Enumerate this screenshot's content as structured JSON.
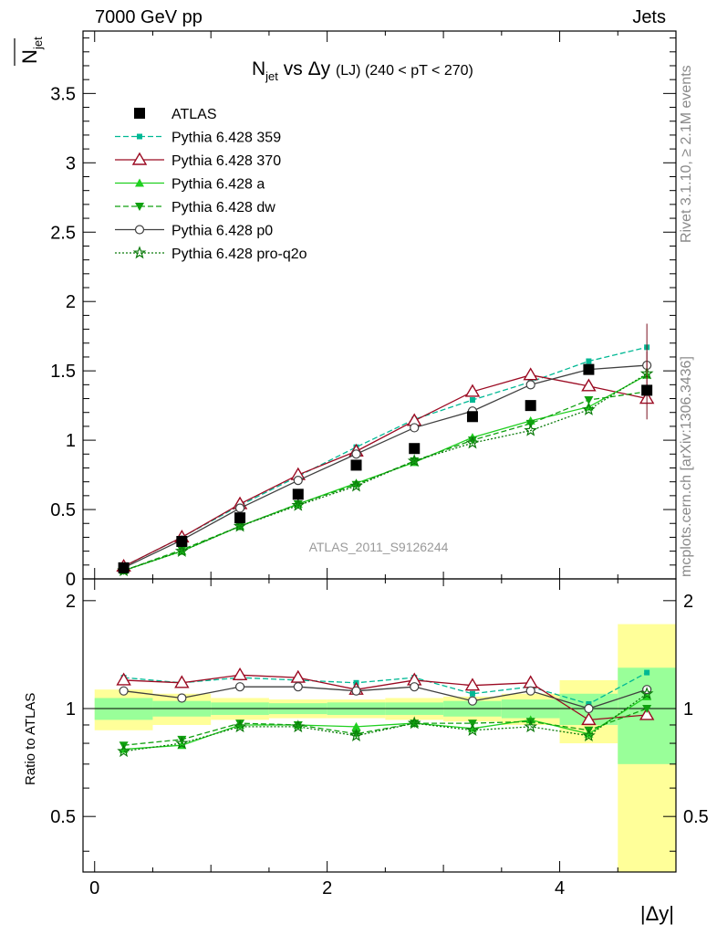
{
  "header": {
    "left": "7000 GeV pp",
    "right": "Jets",
    "side_top": "Rivet 3.1.10, ≥ 2.1M events",
    "side_bottom": "mcplots.cern.ch [arXiv:1306.3436]"
  },
  "colors": {
    "ATLAS": "#000000",
    "359": "#00b894",
    "370": "#9b0a22",
    "a": "#20d020",
    "dw": "#10a010",
    "p0": "#404040",
    "pro-q2o": "#0a7a0a",
    "band_yellow": "#ffff99",
    "band_green": "#99ff99"
  },
  "chart_data": {
    "type": "line",
    "title_main": "N",
    "title_sub": "jet",
    "title_mid": " vs Δy ",
    "title_lj": "(LJ)",
    "title_tail": " (240 < pT < 270)",
    "ylabel_main": "N",
    "ylabel_sub": "jet",
    "xlabel": "|Δy|",
    "ratio_ylabel": "Ratio to ATLAS",
    "watermark": "ATLAS_2011_S9126244",
    "xlim": [
      -0.1,
      5.0
    ],
    "ylim": [
      0,
      3.95
    ],
    "ratio_ylim": [
      0.35,
      2.3
    ],
    "xticks": [
      0,
      2,
      4
    ],
    "yticks": [
      0,
      0.5,
      1,
      1.5,
      2,
      2.5,
      3,
      3.5
    ],
    "ytick_labels": [
      "0",
      "0.5",
      "1",
      "1.5",
      "2",
      "2.5",
      "3",
      "3.5"
    ],
    "ratio_ticks": [
      0.5,
      1,
      2
    ],
    "ratio_tick_labels": [
      "0.5",
      "1",
      "2"
    ],
    "x": [
      0.25,
      0.75,
      1.25,
      1.75,
      2.25,
      2.75,
      3.25,
      3.75,
      4.25,
      4.75
    ],
    "bin_edges": [
      0,
      0.5,
      1.0,
      1.5,
      2.0,
      2.5,
      3.0,
      3.5,
      4.0,
      4.5,
      5.0
    ],
    "data": {
      "name": "ATLAS",
      "values": [
        0.08,
        0.27,
        0.44,
        0.61,
        0.82,
        0.94,
        1.17,
        1.25,
        1.51,
        1.36
      ]
    },
    "band_yellow_half": [
      0.13,
      0.1,
      0.07,
      0.06,
      0.06,
      0.07,
      0.08,
      0.1,
      0.2,
      0.72
    ],
    "band_green_half": [
      0.07,
      0.05,
      0.04,
      0.035,
      0.04,
      0.04,
      0.05,
      0.06,
      0.1,
      0.3
    ],
    "series": [
      {
        "name": "Pythia 6.428 359",
        "key": "359",
        "marker": "square-small",
        "dash": "6,3",
        "values": [
          0.09,
          0.3,
          0.53,
          0.74,
          0.95,
          1.15,
          1.29,
          1.42,
          1.57,
          1.67
        ],
        "ratio": [
          1.22,
          1.18,
          1.22,
          1.2,
          1.18,
          1.22,
          1.1,
          1.15,
          1.03,
          1.26
        ]
      },
      {
        "name": "Pythia 6.428 370",
        "key": "370",
        "marker": "triangle-open",
        "dash": "",
        "values": [
          0.09,
          0.3,
          0.54,
          0.75,
          0.92,
          1.14,
          1.35,
          1.47,
          1.39,
          1.3
        ],
        "ratio": [
          1.2,
          1.18,
          1.24,
          1.22,
          1.13,
          1.2,
          1.16,
          1.18,
          0.93,
          0.96
        ]
      },
      {
        "name": "Pythia 6.428 a",
        "key": "a",
        "marker": "triangle-filled",
        "dash": "",
        "values": [
          0.06,
          0.2,
          0.38,
          0.54,
          0.69,
          0.84,
          1.02,
          1.14,
          1.24,
          1.47
        ],
        "ratio": [
          0.77,
          0.79,
          0.9,
          0.9,
          0.89,
          0.91,
          0.88,
          0.93,
          0.85,
          1.08
        ]
      },
      {
        "name": "Pythia 6.428 dw",
        "key": "dw",
        "marker": "triangle-down",
        "dash": "6,3",
        "values": [
          0.06,
          0.21,
          0.38,
          0.54,
          0.68,
          0.85,
          1.0,
          1.12,
          1.29,
          1.35
        ],
        "ratio": [
          0.79,
          0.82,
          0.91,
          0.9,
          0.85,
          0.91,
          0.91,
          0.92,
          0.87,
          1.0
        ]
      },
      {
        "name": "Pythia 6.428 p0",
        "key": "p0",
        "marker": "circle-open",
        "dash": "",
        "values": [
          0.08,
          0.28,
          0.51,
          0.71,
          0.9,
          1.09,
          1.21,
          1.4,
          1.51,
          1.54
        ],
        "ratio": [
          1.12,
          1.07,
          1.15,
          1.15,
          1.12,
          1.15,
          1.05,
          1.12,
          1.0,
          1.13
        ]
      },
      {
        "name": "Pythia 6.428 pro-q2o",
        "key": "pro-q2o",
        "marker": "star",
        "dash": "2,2",
        "values": [
          0.06,
          0.2,
          0.38,
          0.53,
          0.67,
          0.85,
          0.98,
          1.07,
          1.22,
          1.48
        ],
        "ratio": [
          0.76,
          0.8,
          0.89,
          0.89,
          0.84,
          0.91,
          0.87,
          0.89,
          0.84,
          1.1
        ]
      }
    ]
  }
}
